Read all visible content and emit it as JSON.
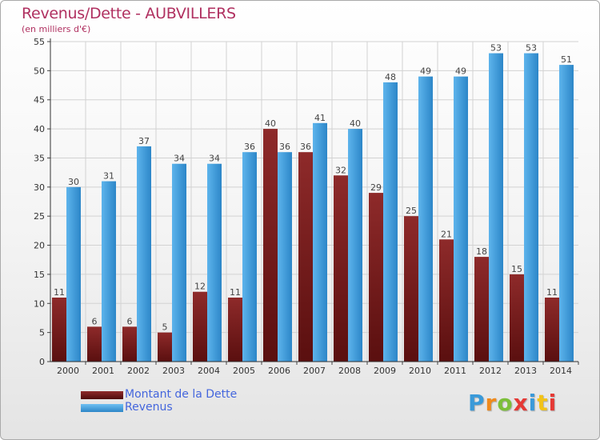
{
  "chart_data": {
    "type": "bar",
    "title": "Revenus/Dette - AUBVILLERS",
    "subtitle": "(en milliers d'€)",
    "xlabel": "",
    "ylabel": "",
    "ylim": [
      0,
      55
    ],
    "yticks": [
      "0",
      "5",
      "10",
      "15",
      "20",
      "25",
      "30",
      "35",
      "40",
      "45",
      "50",
      "55"
    ],
    "grid": true,
    "legend_position": "bottom-left",
    "categories": [
      "2000",
      "2001",
      "2002",
      "2003",
      "2004",
      "2005",
      "2006",
      "2007",
      "2008",
      "2009",
      "2010",
      "2011",
      "2012",
      "2013",
      "2014"
    ],
    "series": [
      {
        "name": "Montant de la Dette",
        "color": "#7a1e1e",
        "values": [
          11,
          6,
          6,
          5,
          12,
          11,
          40,
          36,
          32,
          29,
          25,
          21,
          18,
          15,
          11
        ]
      },
      {
        "name": "Revenus",
        "color": "#3d9ad9",
        "values": [
          30,
          31,
          37,
          34,
          34,
          36,
          36,
          41,
          40,
          48,
          49,
          49,
          53,
          53,
          51
        ]
      }
    ]
  },
  "brand": {
    "letters": [
      "P",
      "r",
      "o",
      "x",
      "i",
      "t",
      "i"
    ]
  }
}
